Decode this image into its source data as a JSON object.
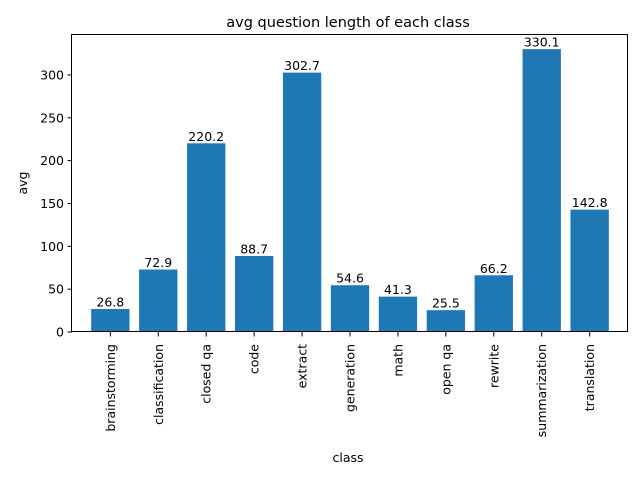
{
  "chart_data": {
    "type": "bar",
    "title": "avg question length of each class",
    "xlabel": "class",
    "ylabel": "avg",
    "categories": [
      "brainstorming",
      "classification",
      "closed qa",
      "code",
      "extract",
      "generation",
      "math",
      "open qa",
      "rewrite",
      "summarization",
      "translation"
    ],
    "values": [
      26.8,
      72.9,
      220.2,
      88.7,
      302.7,
      54.6,
      41.3,
      25.5,
      66.2,
      330.1,
      142.8
    ],
    "data_labels": [
      "26.8",
      "72.9",
      "220.2",
      "88.7",
      "302.7",
      "54.6",
      "41.3",
      "25.5",
      "66.2",
      "330.1",
      "142.8"
    ],
    "yticks": [
      0,
      50,
      100,
      150,
      200,
      250,
      300
    ],
    "ylim": [
      0,
      346.6
    ],
    "grid": false,
    "legend": "none",
    "bar_color": "#1f77b4"
  }
}
